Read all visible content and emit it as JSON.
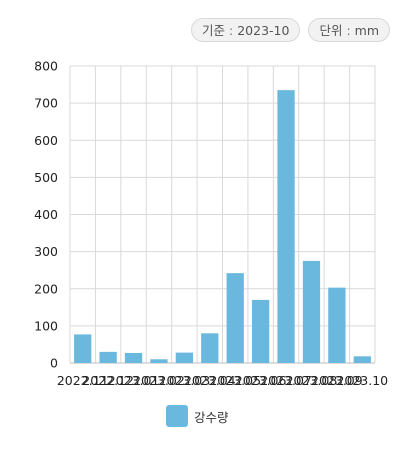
{
  "header": {
    "base_label": "기준",
    "base_value": "2023-10",
    "unit_label": "단위",
    "unit_value": "mm"
  },
  "colors": {
    "bar": "#6ab8de",
    "grid": "#d9d9d9",
    "axis": "#bdbdbd"
  },
  "chart_data": {
    "type": "bar",
    "categories": [
      "2022.11",
      "2022.12",
      "2023.01",
      "2023.02",
      "2023.03",
      "2023.04",
      "2023.05",
      "2023.06",
      "2023.07",
      "2023.08",
      "2023.09",
      "2023.10"
    ],
    "series": [
      {
        "name": "강수량",
        "values": [
          77,
          30,
          27,
          10,
          28,
          80,
          242,
          170,
          735,
          275,
          203,
          18
        ]
      }
    ],
    "ylim": [
      0,
      800
    ],
    "yticks": [
      "0",
      "100",
      "200",
      "300",
      "400",
      "500",
      "600",
      "700",
      "800"
    ],
    "grid": true,
    "legend_position": "bottom"
  }
}
